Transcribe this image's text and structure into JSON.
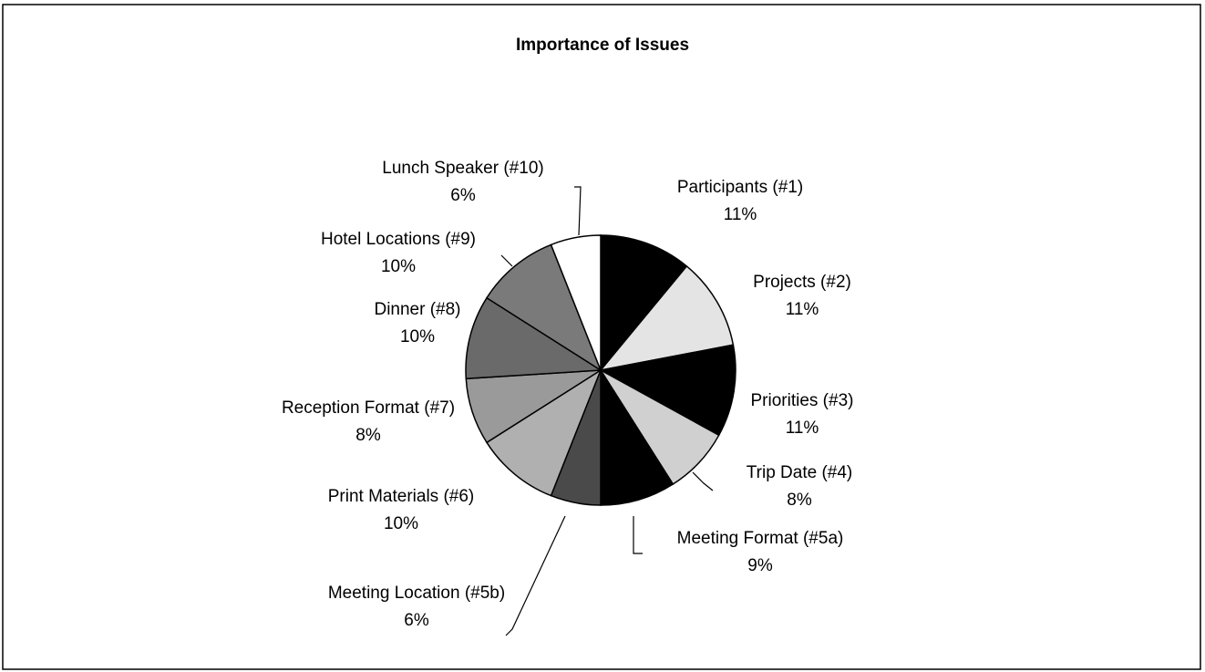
{
  "chart_data": {
    "type": "pie",
    "title": "Importance of Issues",
    "categories": [
      "Participants (#1)",
      "Projects (#2)",
      "Priorities (#3)",
      "Trip Date (#4)",
      "Meeting Format (#5a)",
      "Meeting Location (#5b)",
      "Print Materials (#6)",
      "Reception Format (#7)",
      "Dinner (#8)",
      "Hotel Locations (#9)",
      "Lunch Speaker (#10)"
    ],
    "values": [
      11,
      11,
      11,
      8,
      9,
      6,
      10,
      8,
      10,
      10,
      6
    ],
    "value_labels": [
      "11%",
      "11%",
      "11%",
      "8%",
      "9%",
      "6%",
      "10%",
      "8%",
      "10%",
      "10%",
      "6%"
    ],
    "colors": [
      "#000000",
      "#e4e4e4",
      "#000000",
      "#d0d0d0",
      "#000000",
      "#4a4a4a",
      "#b0b0b0",
      "#9a9a9a",
      "#6a6a6a",
      "#7a7a7a",
      "#ffffff"
    ]
  }
}
